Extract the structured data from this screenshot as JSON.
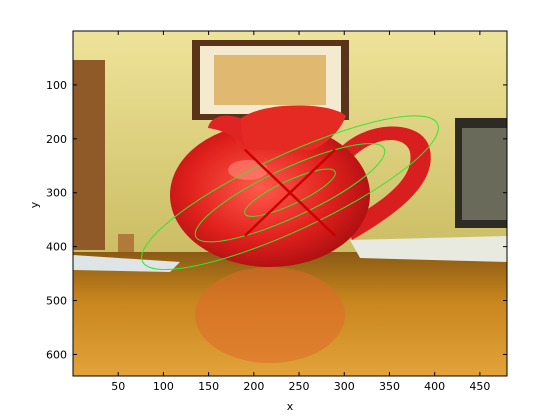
{
  "figure": {
    "xlabel": "x",
    "ylabel": "y",
    "xlim": [
      0,
      480
    ],
    "ylim": [
      640,
      0
    ],
    "x_ticks": [
      {
        "value": 50,
        "label": "50"
      },
      {
        "value": 100,
        "label": "100"
      },
      {
        "value": 150,
        "label": "150"
      },
      {
        "value": 200,
        "label": "200"
      },
      {
        "value": 250,
        "label": "250"
      },
      {
        "value": 300,
        "label": "300"
      },
      {
        "value": 350,
        "label": "350"
      },
      {
        "value": 400,
        "label": "400"
      },
      {
        "value": 450,
        "label": "450"
      }
    ],
    "y_ticks": [
      {
        "value": 100,
        "label": "100"
      },
      {
        "value": 200,
        "label": "200"
      },
      {
        "value": 300,
        "label": "300"
      },
      {
        "value": 400,
        "label": "400"
      },
      {
        "value": 500,
        "label": "500"
      },
      {
        "value": 600,
        "label": "600"
      }
    ]
  },
  "overlay": {
    "ellipse_color": "#33e633",
    "cross_color": "#cc0000",
    "center": [
      240,
      300
    ],
    "rotation_deg": -25,
    "ellipses": [
      {
        "a": 55,
        "b": 22
      },
      {
        "a": 115,
        "b": 45
      },
      {
        "a": 180,
        "b": 70
      }
    ],
    "cross": [
      {
        "from": [
          190,
          220
        ],
        "to": [
          290,
          380
        ]
      },
      {
        "from": [
          190,
          380
        ],
        "to": [
          290,
          220
        ]
      }
    ]
  },
  "photo_colors": {
    "wall": "#d9cc74",
    "table": "#c98a1e",
    "pitcher": "#e02424"
  }
}
